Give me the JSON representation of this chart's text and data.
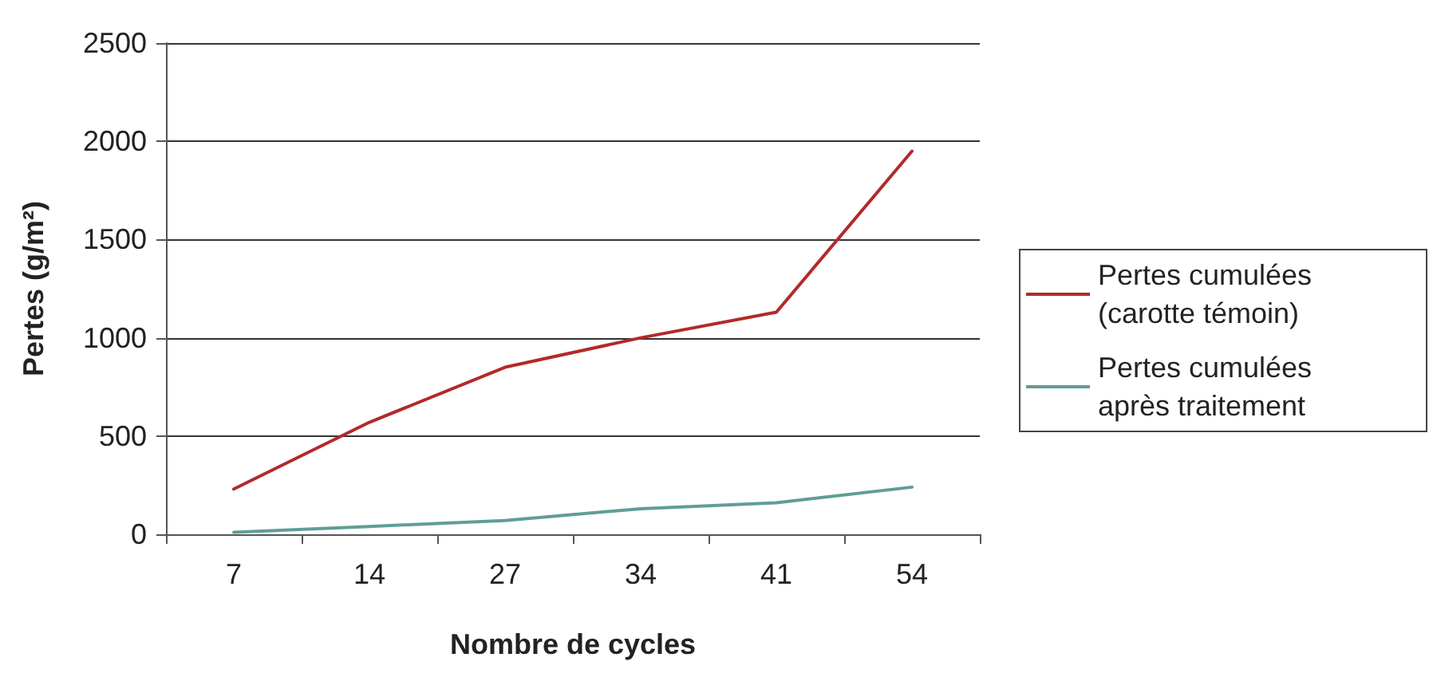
{
  "chart_data": {
    "type": "line",
    "xlabel": "Nombre de cycles",
    "ylabel": "Pertes (g/m²)",
    "categories": [
      "7",
      "14",
      "27",
      "34",
      "41",
      "54"
    ],
    "series": [
      {
        "name": "Pertes cumulées (carotte témoin)",
        "color": "#b22a2a",
        "values": [
          230,
          570,
          850,
          1000,
          1130,
          1950
        ]
      },
      {
        "name": "Pertes cumulées après traitement",
        "color": "#5f9e96",
        "values": [
          10,
          40,
          70,
          130,
          160,
          240
        ]
      }
    ],
    "ylim": [
      0,
      2500
    ],
    "yticks": [
      0,
      500,
      1000,
      1500,
      2000,
      2500
    ],
    "grid": "y",
    "legend": "right",
    "marker": "none",
    "line_style": "solid"
  }
}
